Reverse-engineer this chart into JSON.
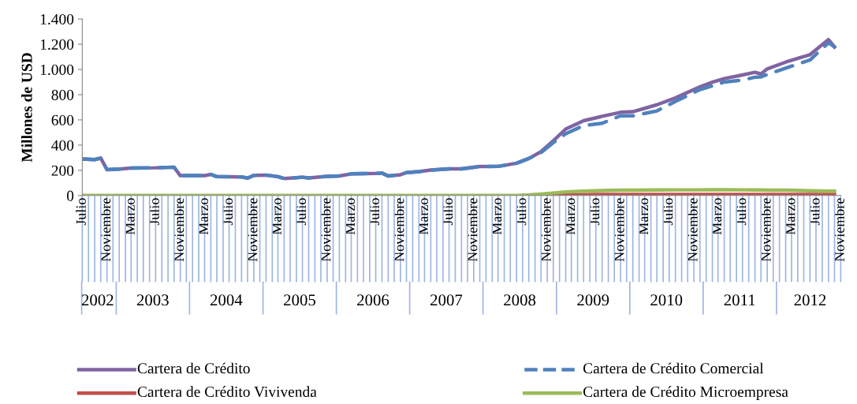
{
  "chart_data": {
    "type": "line",
    "ylabel": "Millones de USD",
    "x": [
      "2002-07",
      "2002-09",
      "2002-10",
      "2002-11",
      "2003-01",
      "2003-03",
      "2003-07",
      "2003-10",
      "2003-11",
      "2004-03",
      "2004-04",
      "2004-05",
      "2004-09",
      "2004-10",
      "2004-11",
      "2005-01",
      "2005-03",
      "2005-04",
      "2005-07",
      "2005-08",
      "2005-11",
      "2006-01",
      "2006-03",
      "2006-07",
      "2006-08",
      "2006-09",
      "2006-11",
      "2006-12",
      "2007-02",
      "2007-04",
      "2007-07",
      "2007-09",
      "2007-12",
      "2008-03",
      "2008-06",
      "2008-08",
      "2008-10",
      "2008-12",
      "2009-02",
      "2009-05",
      "2009-08",
      "2009-11",
      "2010-01",
      "2010-05",
      "2010-08",
      "2010-12",
      "2011-02",
      "2011-04",
      "2011-07",
      "2011-09",
      "2011-10",
      "2011-11",
      "2012-02",
      "2012-06",
      "2012-09",
      "2012-10"
    ],
    "series": [
      {
        "name": "Cartera de Crédito",
        "color": "#8064a2",
        "line_style": "solid",
        "values": [
          290,
          285,
          297,
          205,
          210,
          218,
          220,
          225,
          158,
          158,
          168,
          150,
          148,
          138,
          160,
          162,
          150,
          135,
          145,
          140,
          152,
          155,
          172,
          175,
          178,
          155,
          165,
          182,
          190,
          202,
          212,
          212,
          230,
          231,
          256,
          294,
          348,
          435,
          527,
          593,
          628,
          660,
          665,
          720,
          774,
          862,
          899,
          927,
          956,
          977,
          964,
          1004,
          1058,
          1117,
          1237,
          1178
        ]
      },
      {
        "name": "Cartera de Crédito Comercial",
        "color": "#4f81bd",
        "line_style": "dashed",
        "values": [
          290,
          285,
          297,
          205,
          210,
          218,
          220,
          225,
          158,
          158,
          168,
          150,
          148,
          138,
          160,
          162,
          150,
          135,
          145,
          140,
          152,
          155,
          172,
          175,
          178,
          155,
          165,
          182,
          190,
          202,
          212,
          212,
          230,
          231,
          256,
          294,
          340,
          420,
          490,
          555,
          573,
          632,
          632,
          671,
          746,
          840,
          870,
          900,
          916,
          938,
          941,
          960,
          1010,
          1075,
          1211,
          1178
        ]
      },
      {
        "name": "Cartera de Crédito Vivivenda",
        "color": "#c0504d",
        "line_style": "solid",
        "values": [
          null,
          null,
          null,
          null,
          null,
          null,
          null,
          null,
          null,
          null,
          null,
          null,
          null,
          null,
          null,
          null,
          null,
          null,
          null,
          null,
          null,
          null,
          null,
          null,
          null,
          null,
          null,
          null,
          null,
          null,
          null,
          null,
          null,
          null,
          null,
          0,
          1,
          3,
          5,
          7,
          8,
          8,
          8,
          8,
          8,
          8,
          8,
          8,
          8,
          8,
          8,
          8,
          8,
          8,
          8,
          8
        ]
      },
      {
        "name": "Cartera de Crédito Microempresa",
        "color": "#9bbb59",
        "line_style": "solid",
        "values": [
          0,
          0,
          0,
          0,
          0,
          0,
          0,
          0,
          0,
          0,
          0,
          0,
          0,
          0,
          0,
          0,
          0,
          0,
          0,
          0,
          0,
          0,
          0,
          0,
          0,
          0,
          0,
          0,
          0,
          0,
          0,
          0,
          0,
          0,
          0,
          5,
          12,
          20,
          28,
          35,
          40,
          42,
          42,
          44,
          45,
          45,
          46,
          46,
          45,
          44,
          44,
          43,
          42,
          38,
          35,
          35
        ]
      }
    ],
    "xlim": [
      "2002-07",
      "2012-11"
    ],
    "xticks": [
      {
        "value": "2002-07",
        "label": "Julio"
      },
      {
        "value": "2002-11",
        "label": "Noviembre"
      },
      {
        "value": "2003-03",
        "label": "Marzo"
      },
      {
        "value": "2003-07",
        "label": "Julio"
      },
      {
        "value": "2003-11",
        "label": "Noviembre"
      },
      {
        "value": "2004-03",
        "label": "Marzo"
      },
      {
        "value": "2004-07",
        "label": "Julio"
      },
      {
        "value": "2004-11",
        "label": "Noviembre"
      },
      {
        "value": "2005-03",
        "label": "Marzo"
      },
      {
        "value": "2005-07",
        "label": "Julio"
      },
      {
        "value": "2005-11",
        "label": "Noviembre"
      },
      {
        "value": "2006-03",
        "label": "Marzo"
      },
      {
        "value": "2006-07",
        "label": "Julio"
      },
      {
        "value": "2006-11",
        "label": "Noviembre"
      },
      {
        "value": "2007-03",
        "label": "Marzo"
      },
      {
        "value": "2007-07",
        "label": "Julio"
      },
      {
        "value": "2007-11",
        "label": "Noviembre"
      },
      {
        "value": "2008-03",
        "label": "Marzo"
      },
      {
        "value": "2008-07",
        "label": "Julio"
      },
      {
        "value": "2008-11",
        "label": "Noviembre"
      },
      {
        "value": "2009-03",
        "label": "Marzo"
      },
      {
        "value": "2009-07",
        "label": "Julio"
      },
      {
        "value": "2009-11",
        "label": "Noviembre"
      },
      {
        "value": "2010-03",
        "label": "Marzo"
      },
      {
        "value": "2010-07",
        "label": "Julio"
      },
      {
        "value": "2010-11",
        "label": "Noviembre"
      },
      {
        "value": "2011-03",
        "label": "Marzo"
      },
      {
        "value": "2011-07",
        "label": "Julio"
      },
      {
        "value": "2011-11",
        "label": "Noviembre"
      },
      {
        "value": "2012-03",
        "label": "Marzo"
      },
      {
        "value": "2012-07",
        "label": "Julio"
      },
      {
        "value": "2012-11",
        "label": "Noviembre"
      }
    ],
    "ylim": [
      0,
      1400
    ],
    "yticks": [
      {
        "value": 0,
        "label": "0"
      },
      {
        "value": 200,
        "label": "200"
      },
      {
        "value": 400,
        "label": "400"
      },
      {
        "value": 600,
        "label": "600"
      },
      {
        "value": 800,
        "label": "800"
      },
      {
        "value": 1000,
        "label": "1.000"
      },
      {
        "value": 1200,
        "label": "1.200"
      },
      {
        "value": 1400,
        "label": "1.400"
      }
    ],
    "annotations": [
      "2002",
      "2003",
      "2004",
      "2005",
      "2006",
      "2007",
      "2008",
      "2009",
      "2010",
      "2011",
      "2012"
    ],
    "grid": false,
    "legend": "bottom"
  }
}
